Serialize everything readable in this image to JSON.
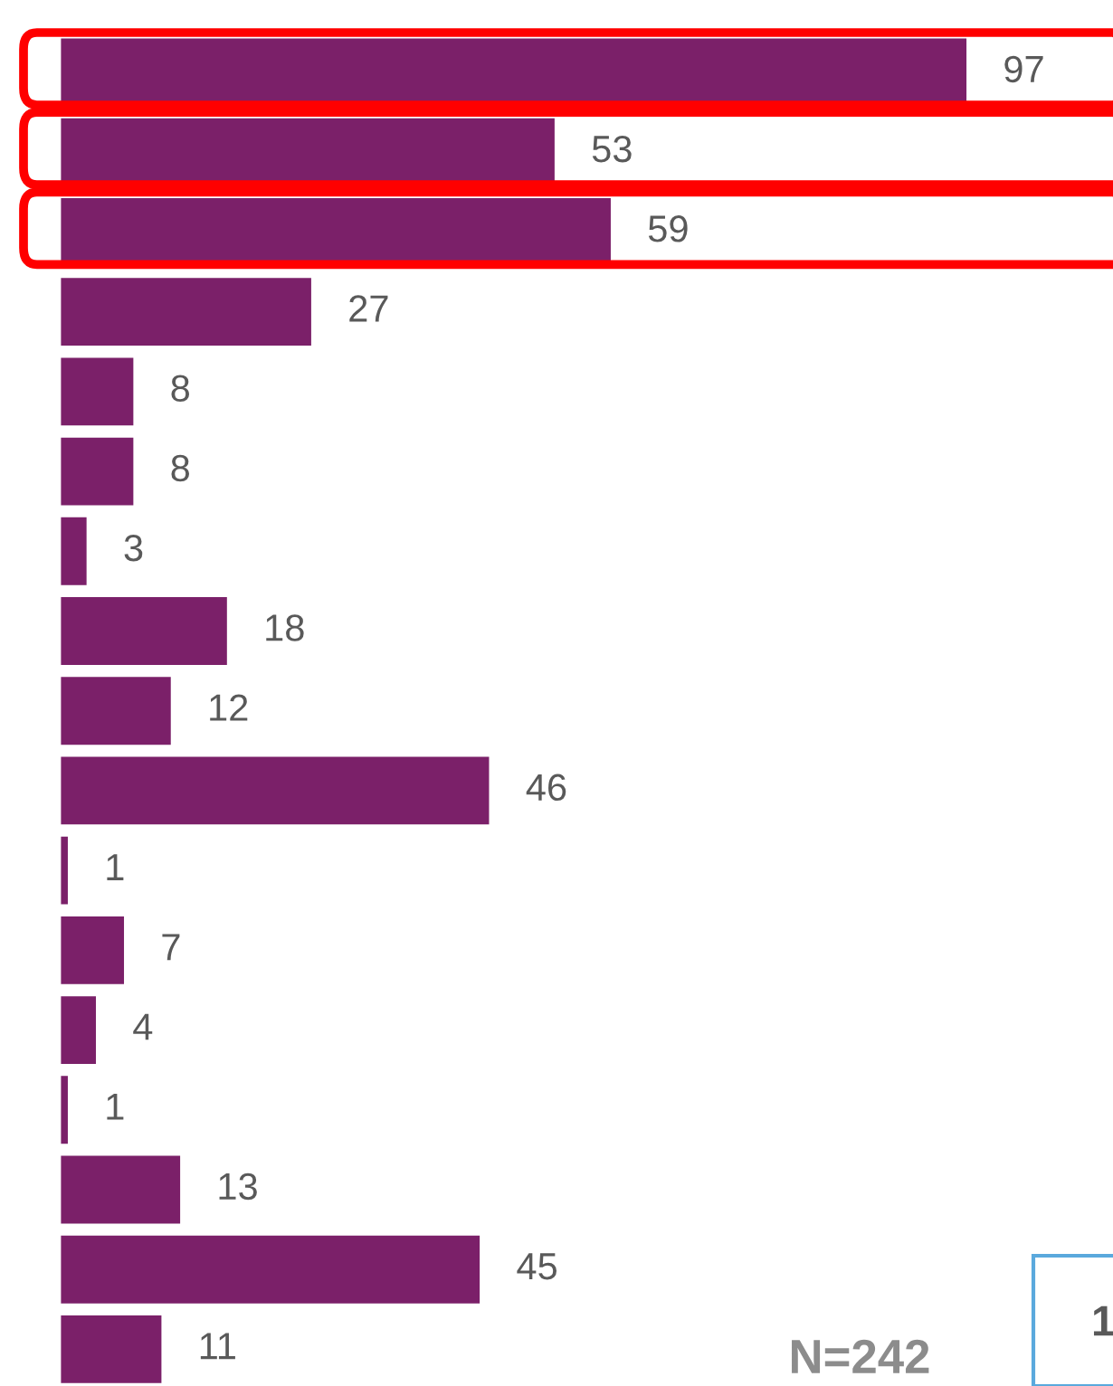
{
  "chart_data": {
    "type": "bar",
    "orientation": "horizontal",
    "categories": [
      null,
      null,
      null,
      null,
      null,
      null,
      null,
      null,
      null,
      null,
      null,
      null,
      null,
      null,
      null,
      null,
      null
    ],
    "values": [
      97,
      53,
      59,
      27,
      8,
      8,
      3,
      18,
      12,
      46,
      1,
      7,
      4,
      1,
      13,
      45,
      11
    ],
    "color": "#7b2069",
    "data_labels": true,
    "annotations": [
      "N=242",
      "1"
    ]
  }
}
